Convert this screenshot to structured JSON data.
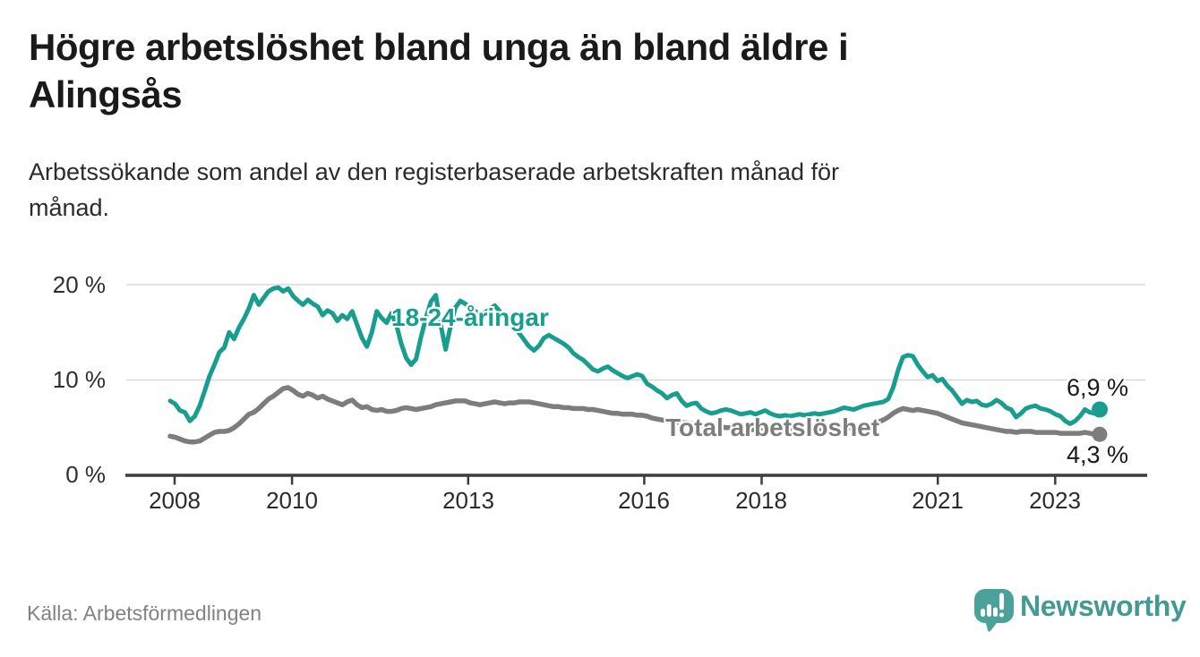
{
  "header": {
    "title_lines": [
      "Högre arbetslöshet bland unga än bland äldre i",
      "Alingsås"
    ],
    "subtitle_lines": [
      "Arbetssökande som andel av den registerbaserade arbetskraften månad för",
      "månad."
    ]
  },
  "footer": {
    "source": "Källa: Arbetsförmedlingen",
    "brand": "Newsworthy",
    "brand_icon": "newsworthy-speech-bubble-bar-chart-icon",
    "brand_color": "#429a93"
  },
  "chart_data": {
    "type": "line",
    "title": "Högre arbetslöshet bland unga än bland äldre i Alingsås",
    "subtitle": "Arbetssökande som andel av den registerbaserade arbetskraften månad för månad.",
    "unit": "%",
    "grid": "horizontal",
    "legend_position": "inline-labels",
    "x_start_year": 2008,
    "x_step_months": 1,
    "x_end_year_fraction": 2023.75,
    "ylim": [
      0,
      21
    ],
    "y_ticks": [
      {
        "value": 20,
        "label": "20 %"
      },
      {
        "value": 10,
        "label": "10 %"
      },
      {
        "value": 0,
        "label": "0 %"
      }
    ],
    "x_ticks": [
      {
        "year": 2008,
        "label": "2008"
      },
      {
        "year": 2010,
        "label": "2010"
      },
      {
        "year": 2013,
        "label": "2013"
      },
      {
        "year": 2016,
        "label": "2016"
      },
      {
        "year": 2018,
        "label": "2018"
      },
      {
        "year": 2021,
        "label": "2021"
      },
      {
        "year": 2023,
        "label": "2023"
      }
    ],
    "series": [
      {
        "name": "18-24-åringar",
        "color": "#189e8e",
        "end_label": "6,9 %",
        "end_value": 6.9,
        "values": [
          7.8,
          7.5,
          6.8,
          6.6,
          5.7,
          6.2,
          7.3,
          8.8,
          10.4,
          11.6,
          12.9,
          13.4,
          15.0,
          14.3,
          15.5,
          16.4,
          17.5,
          18.9,
          17.9,
          18.6,
          19.3,
          19.6,
          19.7,
          19.3,
          19.6,
          18.8,
          18.3,
          17.9,
          18.4,
          18.0,
          17.7,
          16.8,
          17.3,
          17.0,
          16.2,
          16.8,
          16.4,
          17.2,
          15.8,
          14.4,
          13.5,
          15.0,
          17.2,
          16.5,
          16.0,
          17.0,
          15.8,
          13.8,
          12.3,
          11.6,
          12.2,
          14.5,
          16.5,
          18.2,
          18.9,
          15.8,
          13.2,
          15.6,
          17.6,
          18.3,
          18.0,
          17.6,
          17.2,
          16.9,
          17.1,
          17.4,
          17.8,
          17.2,
          16.6,
          16.1,
          15.5,
          14.9,
          14.2,
          13.5,
          13.1,
          13.6,
          14.4,
          14.7,
          14.4,
          14.1,
          13.8,
          13.4,
          12.8,
          12.4,
          12.1,
          11.6,
          11.1,
          10.9,
          11.2,
          11.4,
          11.0,
          10.7,
          10.4,
          10.2,
          10.4,
          10.6,
          10.4,
          9.6,
          9.3,
          8.9,
          8.6,
          8.1,
          8.4,
          8.6,
          7.8,
          7.3,
          7.5,
          7.6,
          7.0,
          6.7,
          6.5,
          6.6,
          6.8,
          6.9,
          6.8,
          6.6,
          6.4,
          6.5,
          6.6,
          6.4,
          6.6,
          6.8,
          6.5,
          6.3,
          6.2,
          6.3,
          6.2,
          6.3,
          6.4,
          6.3,
          6.4,
          6.5,
          6.4,
          6.5,
          6.6,
          6.7,
          6.9,
          7.1,
          7.0,
          6.9,
          7.1,
          7.3,
          7.4,
          7.5,
          7.6,
          7.7,
          8.0,
          9.2,
          11.0,
          12.4,
          12.6,
          12.5,
          11.6,
          10.9,
          10.3,
          10.5,
          9.9,
          10.1,
          9.4,
          8.9,
          8.2,
          7.5,
          7.9,
          7.7,
          7.8,
          7.4,
          7.3,
          7.5,
          7.9,
          7.6,
          7.1,
          6.9,
          6.1,
          6.5,
          7.0,
          7.2,
          7.3,
          7.0,
          6.9,
          6.7,
          6.4,
          6.2,
          5.7,
          5.4,
          5.7,
          6.2,
          6.9,
          6.6,
          6.5,
          6.9
        ]
      },
      {
        "name": "Total arbetslöshet",
        "color": "#7d7d7d",
        "end_label": "4,3 %",
        "end_value": 4.3,
        "values": [
          4.1,
          4.0,
          3.8,
          3.6,
          3.5,
          3.5,
          3.6,
          3.9,
          4.2,
          4.5,
          4.6,
          4.6,
          4.7,
          5.0,
          5.4,
          5.9,
          6.4,
          6.6,
          7.0,
          7.5,
          8.0,
          8.3,
          8.7,
          9.1,
          9.2,
          8.9,
          8.5,
          8.3,
          8.6,
          8.4,
          8.1,
          8.3,
          8.0,
          7.8,
          7.6,
          7.4,
          7.7,
          7.9,
          7.4,
          7.1,
          7.2,
          6.9,
          6.8,
          6.9,
          6.7,
          6.7,
          6.8,
          7.0,
          7.1,
          7.0,
          6.9,
          7.0,
          7.1,
          7.2,
          7.4,
          7.5,
          7.6,
          7.7,
          7.8,
          7.8,
          7.8,
          7.6,
          7.5,
          7.4,
          7.5,
          7.6,
          7.7,
          7.6,
          7.5,
          7.6,
          7.6,
          7.7,
          7.7,
          7.7,
          7.6,
          7.5,
          7.4,
          7.3,
          7.2,
          7.2,
          7.1,
          7.1,
          7.0,
          7.0,
          7.0,
          6.9,
          6.9,
          6.8,
          6.7,
          6.6,
          6.5,
          6.5,
          6.4,
          6.4,
          6.4,
          6.3,
          6.3,
          6.2,
          6.0,
          5.9,
          5.8,
          5.7,
          5.6,
          5.6,
          5.5,
          5.5,
          5.4,
          5.4,
          5.3,
          5.2,
          5.2,
          5.1,
          5.1,
          5.0,
          5.0,
          4.9,
          4.9,
          4.9,
          4.8,
          4.8,
          4.8,
          4.8,
          4.7,
          4.7,
          4.7,
          4.7,
          4.7,
          4.7,
          4.7,
          4.7,
          4.7,
          4.7,
          4.7,
          4.7,
          4.8,
          4.8,
          4.9,
          4.9,
          5.0,
          5.0,
          5.1,
          5.2,
          5.3,
          5.4,
          5.6,
          5.8,
          6.1,
          6.5,
          6.8,
          7.0,
          6.9,
          6.8,
          6.9,
          6.8,
          6.7,
          6.6,
          6.5,
          6.3,
          6.1,
          5.9,
          5.7,
          5.5,
          5.4,
          5.3,
          5.2,
          5.1,
          5.0,
          4.9,
          4.8,
          4.7,
          4.6,
          4.6,
          4.5,
          4.6,
          4.6,
          4.6,
          4.5,
          4.5,
          4.5,
          4.5,
          4.5,
          4.4,
          4.4,
          4.4,
          4.4,
          4.4,
          4.5,
          4.4,
          4.3,
          4.3
        ]
      }
    ]
  }
}
